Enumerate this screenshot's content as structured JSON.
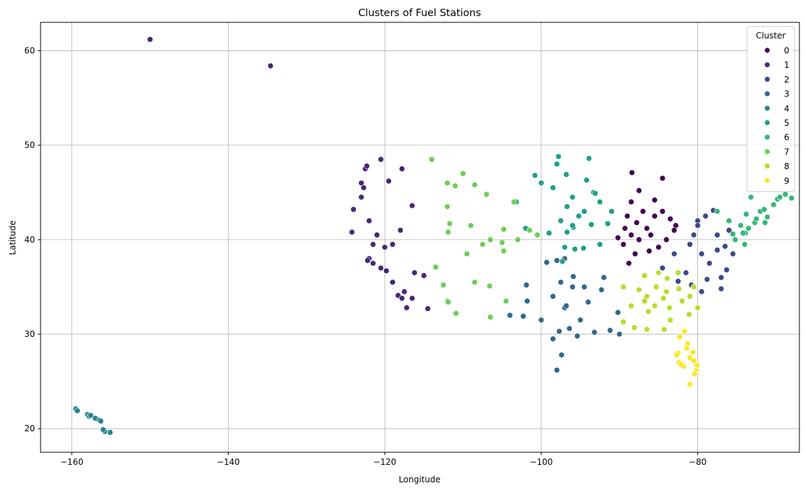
{
  "chart_data": {
    "type": "scatter",
    "title": "Clusters of Fuel Stations",
    "xlabel": "Longitude",
    "ylabel": "Latitude",
    "xlim": [
      -164,
      -67
    ],
    "ylim": [
      17.5,
      63
    ],
    "xticks": [
      -160,
      -140,
      -120,
      -100,
      -80
    ],
    "yticks": [
      20,
      30,
      40,
      50,
      60
    ],
    "grid": true,
    "legend": {
      "title": "Cluster",
      "placement": "top-right"
    },
    "series": [
      {
        "name": "0",
        "color": "#440154",
        "points": [
          [
            -89.5,
            39.5
          ],
          [
            -88.5,
            40.5
          ],
          [
            -87.8,
            41.8
          ],
          [
            -87.5,
            40
          ],
          [
            -86.5,
            41.2
          ],
          [
            -85.5,
            42.5
          ],
          [
            -84.5,
            43
          ],
          [
            -83.5,
            42.2
          ],
          [
            -82.8,
            41.5
          ],
          [
            -84,
            40
          ],
          [
            -85,
            39.2
          ],
          [
            -86.2,
            38.8
          ],
          [
            -88,
            38.5
          ],
          [
            -89.3,
            41.2
          ],
          [
            -90.2,
            40.2
          ],
          [
            -87,
            43
          ],
          [
            -88.5,
            44
          ],
          [
            -87.5,
            45.2
          ],
          [
            -84.5,
            46.5
          ],
          [
            -83,
            41
          ],
          [
            -86,
            40.5
          ],
          [
            -88.8,
            37.5
          ],
          [
            -85.5,
            44.2
          ],
          [
            -89,
            42.5
          ],
          [
            -88.4,
            47.1
          ]
        ]
      },
      {
        "name": "1",
        "color": "#482878",
        "points": [
          [
            -150,
            61.2
          ],
          [
            -134.6,
            58.4
          ],
          [
            -122.5,
            47.5
          ],
          [
            -122.3,
            47.8
          ],
          [
            -123,
            46
          ],
          [
            -122.7,
            45.5
          ],
          [
            -123,
            44.5
          ],
          [
            -124,
            43.2
          ],
          [
            -122,
            42
          ],
          [
            -121.5,
            39.5
          ],
          [
            -122,
            38
          ],
          [
            -121.5,
            37.5
          ],
          [
            -120.5,
            37
          ],
          [
            -119.8,
            36.7
          ],
          [
            -119,
            35.5
          ],
          [
            -118.3,
            34.1
          ],
          [
            -117.8,
            33.8
          ],
          [
            -117.2,
            32.8
          ],
          [
            -116.5,
            33.8
          ],
          [
            -117.5,
            34.5
          ],
          [
            -119,
            39.5
          ],
          [
            -120,
            39.2
          ],
          [
            -121,
            40.5
          ],
          [
            -116.5,
            43.6
          ],
          [
            -117.8,
            47.5
          ],
          [
            -119.5,
            46.2
          ],
          [
            -115,
            36.2
          ],
          [
            -114.5,
            32.7
          ],
          [
            -116.2,
            36.5
          ],
          [
            -118,
            41
          ],
          [
            -120.5,
            48.5
          ],
          [
            -124.2,
            40.8
          ],
          [
            -122.2,
            37.8
          ]
        ]
      },
      {
        "name": "2",
        "color": "#3e4989",
        "points": [
          [
            -80.5,
            40.5
          ],
          [
            -79.5,
            38.5
          ],
          [
            -78.5,
            37.5
          ],
          [
            -77.5,
            38.9
          ],
          [
            -76.5,
            39.3
          ],
          [
            -77,
            36
          ],
          [
            -78.8,
            35.8
          ],
          [
            -80.8,
            35.2
          ],
          [
            -81.5,
            36.5
          ],
          [
            -82.5,
            35.6
          ],
          [
            -84.5,
            37
          ],
          [
            -83,
            38.5
          ],
          [
            -79,
            42.5
          ],
          [
            -80,
            42
          ],
          [
            -77.5,
            40.5
          ],
          [
            -76,
            41
          ],
          [
            -78,
            43.1
          ],
          [
            -79.5,
            34.5
          ],
          [
            -77,
            34.8
          ],
          [
            -81,
            39.5
          ],
          [
            -80,
            41.5
          ],
          [
            -75.5,
            38.5
          ],
          [
            -76.3,
            36.8
          ]
        ]
      },
      {
        "name": "3",
        "color": "#31688e",
        "points": [
          [
            -97,
            32.8
          ],
          [
            -96.8,
            33
          ],
          [
            -95.4,
            29.8
          ],
          [
            -98.5,
            29.5
          ],
          [
            -97.7,
            30.3
          ],
          [
            -97.4,
            27.8
          ],
          [
            -98,
            26.2
          ],
          [
            -94.5,
            35
          ],
          [
            -92.3,
            34.7
          ],
          [
            -90.2,
            32.3
          ],
          [
            -91.2,
            30.4
          ],
          [
            -93.2,
            30.2
          ],
          [
            -94,
            33.4
          ],
          [
            -95.9,
            36.1
          ],
          [
            -97.5,
            35.5
          ],
          [
            -96,
            35
          ],
          [
            -98.5,
            34
          ],
          [
            -101.8,
            33.5
          ],
          [
            -101.9,
            35.2
          ],
          [
            -104,
            32
          ],
          [
            -100,
            31.5
          ],
          [
            -97,
            38
          ],
          [
            -98,
            37.8
          ],
          [
            -99.3,
            37.6
          ],
          [
            -92,
            36
          ],
          [
            -95,
            31.5
          ],
          [
            -96.4,
            30.6
          ],
          [
            -102.3,
            31.9
          ],
          [
            -90,
            30
          ]
        ]
      },
      {
        "name": "4",
        "color": "#26828e",
        "points": [
          [
            -159.5,
            22.1
          ],
          [
            -159.3,
            21.9
          ],
          [
            -158,
            21.5
          ],
          [
            -157.8,
            21.3
          ],
          [
            -157.6,
            21.4
          ],
          [
            -157,
            21.1
          ],
          [
            -156.5,
            20.9
          ],
          [
            -156.3,
            20.8
          ],
          [
            -155.8,
            19.7
          ],
          [
            -155.1,
            19.6
          ],
          [
            -156,
            19.9
          ]
        ]
      },
      {
        "name": "5",
        "color": "#1f9e89",
        "points": [
          [
            -93.3,
            45
          ],
          [
            -93.1,
            44.9
          ],
          [
            -96.8,
            46.9
          ],
          [
            -96.7,
            43.5
          ],
          [
            -95.9,
            41.3
          ],
          [
            -96.7,
            40.8
          ],
          [
            -94.6,
            39.1
          ],
          [
            -97.3,
            37.7
          ],
          [
            -93.6,
            41.6
          ],
          [
            -91.5,
            41.7
          ],
          [
            -92.5,
            44
          ],
          [
            -94.2,
            46.3
          ],
          [
            -98,
            48
          ],
          [
            -100.8,
            46.8
          ],
          [
            -103.2,
            44
          ],
          [
            -97.5,
            42
          ],
          [
            -99,
            40.7
          ],
          [
            -95.7,
            39
          ],
          [
            -96,
            44.5
          ],
          [
            -94.5,
            43
          ],
          [
            -91,
            43
          ],
          [
            -97.8,
            48.8
          ],
          [
            -100,
            46
          ],
          [
            -98.5,
            45.5
          ],
          [
            -92.5,
            39.5
          ],
          [
            -96,
            41.5
          ],
          [
            -93.9,
            48.6
          ],
          [
            -95.2,
            42.5
          ],
          [
            -97,
            39.2
          ],
          [
            -102,
            41.2
          ]
        ]
      },
      {
        "name": "6",
        "color": "#35b779",
        "points": [
          [
            -71.1,
            42.4
          ],
          [
            -71.4,
            41.8
          ],
          [
            -72.7,
            41.8
          ],
          [
            -73.9,
            40.7
          ],
          [
            -74.2,
            40.7
          ],
          [
            -75.2,
            40
          ],
          [
            -73.2,
            44.5
          ],
          [
            -70.3,
            43.7
          ],
          [
            -69.8,
            44.3
          ],
          [
            -68.8,
            44.8
          ],
          [
            -72,
            43
          ],
          [
            -73.8,
            42.7
          ],
          [
            -74.5,
            41.5
          ],
          [
            -75.5,
            40.6
          ],
          [
            -76,
            42
          ],
          [
            -77.5,
            43
          ],
          [
            -74,
            39.5
          ],
          [
            -72.5,
            42.2
          ],
          [
            -71.5,
            43.2
          ],
          [
            -73.5,
            41.2
          ],
          [
            -69.5,
            44.5
          ],
          [
            -68,
            44.4
          ]
        ]
      },
      {
        "name": "7",
        "color": "#6ece58",
        "points": [
          [
            -112,
            33.5
          ],
          [
            -111.9,
            33.4
          ],
          [
            -110.9,
            32.2
          ],
          [
            -108.5,
            35.5
          ],
          [
            -106.6,
            35.1
          ],
          [
            -106.5,
            31.8
          ],
          [
            -105,
            39.7
          ],
          [
            -104.8,
            38.8
          ],
          [
            -104.8,
            41.1
          ],
          [
            -108.5,
            45.8
          ],
          [
            -111.9,
            40.8
          ],
          [
            -111.7,
            41.7
          ],
          [
            -112,
            43.5
          ],
          [
            -109,
            41.5
          ],
          [
            -107,
            44.8
          ],
          [
            -114,
            48.5
          ],
          [
            -110,
            47
          ],
          [
            -112,
            46
          ],
          [
            -106.5,
            40
          ],
          [
            -103.5,
            44
          ],
          [
            -104.5,
            33.5
          ],
          [
            -109.5,
            38.5
          ],
          [
            -113.5,
            37.1
          ],
          [
            -112.5,
            35.2
          ],
          [
            -100.5,
            40.5
          ],
          [
            -101.5,
            41
          ],
          [
            -103,
            40
          ],
          [
            -111,
            45.7
          ],
          [
            -107.5,
            39.5
          ]
        ]
      },
      {
        "name": "8",
        "color": "#b5de2b",
        "points": [
          [
            -86.8,
            36.2
          ],
          [
            -86.8,
            33.5
          ],
          [
            -84.4,
            33.8
          ],
          [
            -85.3,
            35
          ],
          [
            -83.9,
            35.9
          ],
          [
            -82.4,
            34.8
          ],
          [
            -81,
            34
          ],
          [
            -80,
            32.8
          ],
          [
            -81.1,
            32.1
          ],
          [
            -83.6,
            32.8
          ],
          [
            -84.3,
            30.5
          ],
          [
            -86.3,
            32.4
          ],
          [
            -88.1,
            30.7
          ],
          [
            -89.5,
            31.3
          ],
          [
            -87.5,
            34.7
          ],
          [
            -85.5,
            33
          ],
          [
            -82,
            33.5
          ],
          [
            -80.5,
            35
          ],
          [
            -86.5,
            34
          ],
          [
            -83.5,
            31.5
          ],
          [
            -88.5,
            33
          ],
          [
            -85,
            36.5
          ],
          [
            -86.5,
            30.5
          ],
          [
            -89.5,
            35
          ],
          [
            -82.5,
            36.5
          ],
          [
            -84,
            34.5
          ]
        ]
      },
      {
        "name": "9",
        "color": "#fde725",
        "points": [
          [
            -81.7,
            30.3
          ],
          [
            -82.3,
            29.7
          ],
          [
            -81.4,
            28.5
          ],
          [
            -82.5,
            28
          ],
          [
            -82.7,
            27.8
          ],
          [
            -80.2,
            26.1
          ],
          [
            -80.1,
            26.7
          ],
          [
            -81.8,
            26.6
          ],
          [
            -81.3,
            29
          ],
          [
            -80.6,
            28.1
          ],
          [
            -82.4,
            27
          ],
          [
            -80.4,
            25.8
          ],
          [
            -81,
            24.7
          ],
          [
            -82.1,
            26.8
          ],
          [
            -81,
            27.5
          ],
          [
            -80.5,
            27.2
          ]
        ]
      }
    ]
  }
}
